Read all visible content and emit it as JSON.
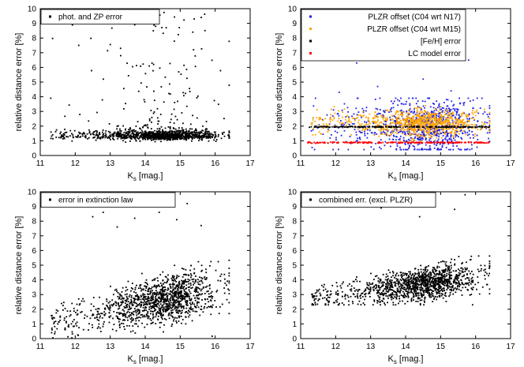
{
  "chart_data": [
    {
      "type": "scatter",
      "xlabel": "K",
      "xlabel_sub": "s",
      "xlabel_unit": " [mag.]",
      "ylabel": "relative distance error [%]",
      "xlim": [
        11,
        17
      ],
      "ylim": [
        0,
        10
      ],
      "xticks": [
        "11",
        "12",
        "13",
        "14",
        "15",
        "16",
        "17"
      ],
      "yticks": [
        "0",
        "1",
        "2",
        "3",
        "4",
        "5",
        "6",
        "7",
        "8",
        "9",
        "10"
      ],
      "legend_position": "top-left",
      "series": [
        {
          "name": "phot. and ZP error",
          "color": "#000000",
          "generator": {
            "type": "cloud",
            "n": 1300,
            "y_base": 1.2,
            "y_spread": 0.35,
            "tail_fraction": 0.12,
            "tail_max": 9.4
          },
          "points": [
            [
              11.3,
              3.9
            ],
            [
              12.1,
              7.5
            ],
            [
              13.7,
              8.9
            ],
            [
              13.8,
              9.0
            ],
            [
              14.3,
              8.8
            ],
            [
              14.6,
              8.7
            ],
            [
              15.4,
              9.3
            ],
            [
              15.6,
              9.4
            ],
            [
              13.3,
              6.8
            ]
          ]
        }
      ]
    },
    {
      "type": "scatter",
      "xlabel": "K",
      "xlabel_sub": "s",
      "xlabel_unit": " [mag.]",
      "ylabel": "relative distance error [%]",
      "xlim": [
        11,
        17
      ],
      "ylim": [
        0,
        10
      ],
      "xticks": [
        "11",
        "12",
        "13",
        "14",
        "15",
        "16",
        "17"
      ],
      "yticks": [
        "0",
        "1",
        "2",
        "3",
        "4",
        "5",
        "6",
        "7",
        "8",
        "9",
        "10"
      ],
      "legend_position": "top-left",
      "series": [
        {
          "name": "PLZR offset (C04 wrt N17)",
          "color": "#1f1fe6",
          "generator": {
            "type": "spread",
            "n": 900,
            "y_center": 2.0,
            "y_spread": 0.9,
            "y_min": 0.4,
            "y_max": 3.9
          },
          "points": [
            [
              12.6,
              6.3
            ],
            [
              15.8,
              6.5
            ],
            [
              14.5,
              5.2
            ],
            [
              13.2,
              4.7
            ],
            [
              12.1,
              4.3
            ],
            [
              15.3,
              4.4
            ]
          ]
        },
        {
          "name": "PLZR offset (C04 wrt M15)",
          "color": "#ffa500",
          "generator": {
            "type": "spread",
            "n": 900,
            "y_center": 2.2,
            "y_spread": 0.45,
            "y_min": 1.0,
            "y_max": 3.4
          },
          "points": []
        },
        {
          "name": "[Fe/H] error",
          "color": "#000000",
          "generator": {
            "type": "line",
            "n": 220,
            "y": 1.95
          },
          "points": []
        },
        {
          "name": "LC model error",
          "color": "#ff0000",
          "generator": {
            "type": "line",
            "n": 220,
            "y": 0.88
          },
          "points": []
        }
      ]
    },
    {
      "type": "scatter",
      "xlabel": "K",
      "xlabel_sub": "s",
      "xlabel_unit": " [mag.]",
      "ylabel": "relative distance error [%]",
      "xlim": [
        11,
        17
      ],
      "ylim": [
        0,
        10
      ],
      "xticks": [
        "11",
        "12",
        "13",
        "14",
        "15",
        "16",
        "17"
      ],
      "yticks": [
        "0",
        "1",
        "2",
        "3",
        "4",
        "5",
        "6",
        "7",
        "8",
        "9",
        "10"
      ],
      "legend_position": "top-left",
      "series": [
        {
          "name": "error in extinction law",
          "color": "#000000",
          "generator": {
            "type": "rising",
            "n": 1300,
            "y_base": 1.0,
            "slope": 0.55,
            "y_spread": 1.0,
            "y_min": 0.05,
            "y_max": 7.0
          },
          "points": [
            [
              12.5,
              8.3
            ],
            [
              12.8,
              8.6
            ],
            [
              13.2,
              7.6
            ],
            [
              13.7,
              8.2
            ],
            [
              14.4,
              8.6
            ],
            [
              14.9,
              8.1
            ],
            [
              15.6,
              7.7
            ],
            [
              15.2,
              9.2
            ]
          ]
        }
      ]
    },
    {
      "type": "scatter",
      "xlabel": "K",
      "xlabel_sub": "s",
      "xlabel_unit": " [mag.]",
      "ylabel": "relative distance error [%]",
      "xlim": [
        11,
        17
      ],
      "ylim": [
        0,
        10
      ],
      "xticks": [
        "11",
        "12",
        "13",
        "14",
        "15",
        "16",
        "17"
      ],
      "yticks": [
        "0",
        "1",
        "2",
        "3",
        "4",
        "5",
        "6",
        "7",
        "8",
        "9",
        "10"
      ],
      "legend_position": "top-left",
      "series": [
        {
          "name": "combined err. (excl. PLZR)",
          "color": "#000000",
          "generator": {
            "type": "rising",
            "n": 1300,
            "y_base": 2.6,
            "slope": 0.38,
            "y_spread": 0.75,
            "y_min": 2.3,
            "y_max": 7.8
          },
          "points": [
            [
              12.5,
              9.0
            ],
            [
              12.8,
              9.1
            ],
            [
              13.3,
              8.9
            ],
            [
              14.4,
              8.3
            ],
            [
              15.7,
              9.8
            ],
            [
              15.4,
              8.8
            ]
          ]
        }
      ]
    }
  ]
}
